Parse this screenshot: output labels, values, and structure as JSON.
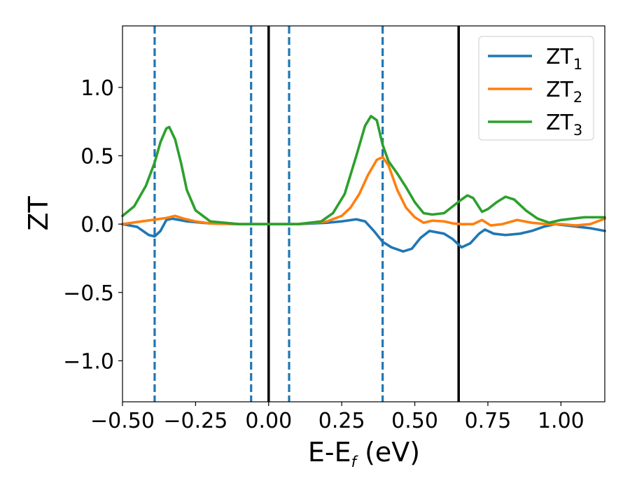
{
  "chart_data": {
    "type": "line",
    "xlabel": {
      "main": "E-E",
      "sub": "f",
      "unit": " (eV)"
    },
    "ylabel": "ZT",
    "xlim": [
      -0.5,
      1.15
    ],
    "ylim": [
      -1.3,
      1.45
    ],
    "x_ticks": [
      {
        "value": -0.5,
        "label": "−0.50"
      },
      {
        "value": -0.25,
        "label": "−0.25"
      },
      {
        "value": 0.0,
        "label": "0.00"
      },
      {
        "value": 0.25,
        "label": "0.25"
      },
      {
        "value": 0.5,
        "label": "0.50"
      },
      {
        "value": 0.75,
        "label": "0.75"
      },
      {
        "value": 1.0,
        "label": "1.00"
      }
    ],
    "y_ticks": [
      {
        "value": -1.0,
        "label": "−1.0"
      },
      {
        "value": -0.5,
        "label": "−0.5"
      },
      {
        "value": 0.0,
        "label": "0.0"
      },
      {
        "value": 0.5,
        "label": "0.5"
      },
      {
        "value": 1.0,
        "label": "1.0"
      }
    ],
    "grid": false,
    "legend_position": "top-right",
    "vertical_lines": [
      {
        "x": -0.39,
        "style": "dashed",
        "color": "#1f77b4"
      },
      {
        "x": -0.06,
        "style": "dashed",
        "color": "#1f77b4"
      },
      {
        "x": 0.0,
        "style": "solid",
        "color": "#000000"
      },
      {
        "x": 0.07,
        "style": "dashed",
        "color": "#1f77b4"
      },
      {
        "x": 0.39,
        "style": "dashed",
        "color": "#1f77b4"
      },
      {
        "x": 0.65,
        "style": "solid",
        "color": "#000000"
      }
    ],
    "series": [
      {
        "name": "ZT",
        "sub": "1",
        "color": "#1f77b4",
        "points": [
          [
            -0.5,
            0.0
          ],
          [
            -0.45,
            -0.02
          ],
          [
            -0.41,
            -0.08
          ],
          [
            -0.39,
            -0.09
          ],
          [
            -0.37,
            -0.05
          ],
          [
            -0.35,
            0.03
          ],
          [
            -0.33,
            0.04
          ],
          [
            -0.28,
            0.02
          ],
          [
            -0.2,
            0.005
          ],
          [
            -0.1,
            0.0
          ],
          [
            0.0,
            0.0
          ],
          [
            0.1,
            0.0
          ],
          [
            0.2,
            0.01
          ],
          [
            0.25,
            0.02
          ],
          [
            0.3,
            0.035
          ],
          [
            0.33,
            0.02
          ],
          [
            0.36,
            -0.05
          ],
          [
            0.39,
            -0.13
          ],
          [
            0.42,
            -0.17
          ],
          [
            0.46,
            -0.2
          ],
          [
            0.49,
            -0.18
          ],
          [
            0.52,
            -0.1
          ],
          [
            0.55,
            -0.05
          ],
          [
            0.6,
            -0.07
          ],
          [
            0.63,
            -0.11
          ],
          [
            0.66,
            -0.17
          ],
          [
            0.69,
            -0.14
          ],
          [
            0.72,
            -0.07
          ],
          [
            0.74,
            -0.04
          ],
          [
            0.77,
            -0.07
          ],
          [
            0.81,
            -0.08
          ],
          [
            0.86,
            -0.07
          ],
          [
            0.9,
            -0.05
          ],
          [
            0.94,
            -0.02
          ],
          [
            0.98,
            0.0
          ],
          [
            1.02,
            -0.01
          ],
          [
            1.06,
            -0.02
          ],
          [
            1.1,
            -0.03
          ],
          [
            1.15,
            -0.05
          ]
        ]
      },
      {
        "name": "ZT",
        "sub": "2",
        "color": "#ff7f0e",
        "points": [
          [
            -0.5,
            0.0
          ],
          [
            -0.45,
            0.015
          ],
          [
            -0.4,
            0.03
          ],
          [
            -0.35,
            0.045
          ],
          [
            -0.32,
            0.06
          ],
          [
            -0.29,
            0.04
          ],
          [
            -0.25,
            0.02
          ],
          [
            -0.2,
            0.005
          ],
          [
            -0.1,
            0.0
          ],
          [
            0.0,
            0.0
          ],
          [
            0.1,
            0.0
          ],
          [
            0.2,
            0.02
          ],
          [
            0.25,
            0.06
          ],
          [
            0.28,
            0.12
          ],
          [
            0.31,
            0.22
          ],
          [
            0.34,
            0.36
          ],
          [
            0.37,
            0.47
          ],
          [
            0.39,
            0.49
          ],
          [
            0.41,
            0.43
          ],
          [
            0.44,
            0.25
          ],
          [
            0.47,
            0.12
          ],
          [
            0.5,
            0.05
          ],
          [
            0.53,
            0.01
          ],
          [
            0.56,
            0.025
          ],
          [
            0.6,
            0.02
          ],
          [
            0.63,
            0.005
          ],
          [
            0.66,
            0.0
          ],
          [
            0.7,
            0.0
          ],
          [
            0.73,
            0.03
          ],
          [
            0.76,
            -0.01
          ],
          [
            0.8,
            0.0
          ],
          [
            0.85,
            0.03
          ],
          [
            0.9,
            0.01
          ],
          [
            0.95,
            0.0
          ],
          [
            1.0,
            0.0
          ],
          [
            1.05,
            -0.01
          ],
          [
            1.1,
            0.0
          ],
          [
            1.15,
            0.04
          ]
        ]
      },
      {
        "name": "ZT",
        "sub": "3",
        "color": "#2ca02c",
        "points": [
          [
            -0.5,
            0.06
          ],
          [
            -0.46,
            0.13
          ],
          [
            -0.42,
            0.28
          ],
          [
            -0.39,
            0.45
          ],
          [
            -0.37,
            0.6
          ],
          [
            -0.35,
            0.7
          ],
          [
            -0.34,
            0.71
          ],
          [
            -0.32,
            0.62
          ],
          [
            -0.3,
            0.45
          ],
          [
            -0.28,
            0.25
          ],
          [
            -0.25,
            0.1
          ],
          [
            -0.2,
            0.02
          ],
          [
            -0.1,
            0.0
          ],
          [
            0.0,
            0.0
          ],
          [
            0.1,
            0.0
          ],
          [
            0.18,
            0.02
          ],
          [
            0.22,
            0.08
          ],
          [
            0.26,
            0.22
          ],
          [
            0.3,
            0.5
          ],
          [
            0.33,
            0.72
          ],
          [
            0.35,
            0.79
          ],
          [
            0.37,
            0.76
          ],
          [
            0.39,
            0.58
          ],
          [
            0.41,
            0.46
          ],
          [
            0.44,
            0.37
          ],
          [
            0.47,
            0.27
          ],
          [
            0.5,
            0.16
          ],
          [
            0.53,
            0.08
          ],
          [
            0.56,
            0.07
          ],
          [
            0.6,
            0.08
          ],
          [
            0.63,
            0.13
          ],
          [
            0.66,
            0.18
          ],
          [
            0.68,
            0.21
          ],
          [
            0.7,
            0.19
          ],
          [
            0.73,
            0.09
          ],
          [
            0.75,
            0.11
          ],
          [
            0.78,
            0.16
          ],
          [
            0.81,
            0.2
          ],
          [
            0.84,
            0.18
          ],
          [
            0.88,
            0.1
          ],
          [
            0.92,
            0.04
          ],
          [
            0.96,
            0.01
          ],
          [
            1.0,
            0.03
          ],
          [
            1.04,
            0.04
          ],
          [
            1.08,
            0.05
          ],
          [
            1.12,
            0.05
          ],
          [
            1.15,
            0.05
          ]
        ]
      }
    ]
  }
}
